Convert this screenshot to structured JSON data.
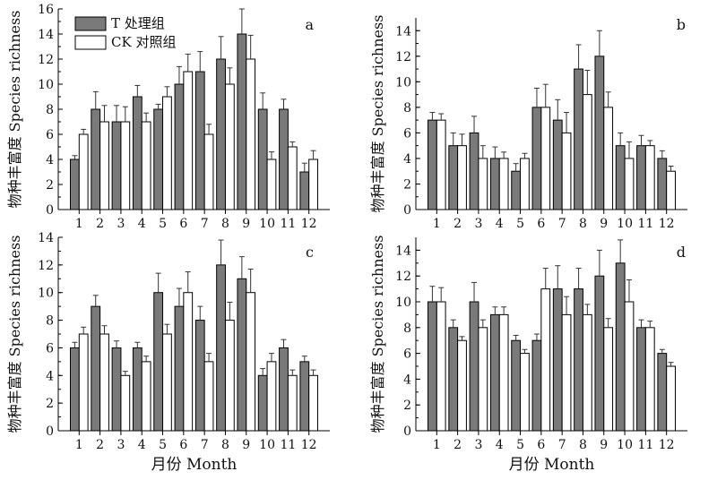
{
  "legend": {
    "items": [
      {
        "label": "T 处理组",
        "fill": "#7a7a7a"
      },
      {
        "label": "CK 对照组",
        "fill": "#ffffff"
      }
    ]
  },
  "xlabel_bottom": "月份 Month",
  "ylabel": "物种丰富度 Species richness",
  "chart_data": [
    {
      "type": "bar",
      "panel": "a",
      "categories": [
        "1",
        "2",
        "3",
        "4",
        "5",
        "6",
        "7",
        "8",
        "9",
        "10",
        "11",
        "12"
      ],
      "ylim": [
        0,
        16
      ],
      "yticks": [
        0,
        2,
        4,
        6,
        8,
        10,
        12,
        14,
        16
      ],
      "series": [
        {
          "name": "T 处理组",
          "values": [
            4,
            8,
            7,
            9,
            8,
            10,
            11,
            12,
            14,
            8,
            8,
            3
          ],
          "errors": [
            0.3,
            1.4,
            1.3,
            0.9,
            0.4,
            1.4,
            1.6,
            1.8,
            2.0,
            1.3,
            0.8,
            0.7
          ]
        },
        {
          "name": "CK 对照组",
          "values": [
            6,
            7,
            7,
            7,
            9,
            11,
            6,
            10,
            12,
            4,
            5,
            4
          ],
          "errors": [
            0.4,
            1.3,
            1.2,
            0.7,
            0.8,
            1.4,
            0.8,
            1.3,
            1.9,
            0.6,
            0.4,
            0.7
          ]
        }
      ]
    },
    {
      "type": "bar",
      "panel": "b",
      "categories": [
        "1",
        "2",
        "3",
        "4",
        "5",
        "6",
        "7",
        "8",
        "9",
        "10",
        "11",
        "12"
      ],
      "ylim": [
        0,
        15
      ],
      "yticks": [
        0,
        2,
        4,
        6,
        8,
        10,
        12,
        14
      ],
      "series": [
        {
          "name": "T 处理组",
          "values": [
            7,
            5,
            6,
            4,
            3,
            8,
            7,
            11,
            12,
            5,
            5,
            4
          ],
          "errors": [
            0.6,
            1.0,
            1.3,
            0.9,
            0.6,
            1.5,
            1.6,
            1.9,
            2.0,
            1.0,
            0.8,
            0.6
          ]
        },
        {
          "name": "CK 对照组",
          "values": [
            7,
            5,
            4,
            4,
            4,
            8,
            6,
            9,
            8,
            4,
            5,
            3
          ],
          "errors": [
            0.5,
            0.9,
            1.0,
            0.5,
            0.4,
            1.8,
            1.6,
            1.9,
            1.2,
            1.3,
            0.4,
            0.4
          ]
        }
      ]
    },
    {
      "type": "bar",
      "panel": "c",
      "categories": [
        "1",
        "2",
        "3",
        "4",
        "5",
        "6",
        "7",
        "8",
        "9",
        "10",
        "11",
        "12"
      ],
      "ylim": [
        0,
        14
      ],
      "yticks": [
        0,
        2,
        4,
        6,
        8,
        10,
        12,
        14
      ],
      "series": [
        {
          "name": "T 处理组",
          "values": [
            6,
            9,
            6,
            6,
            10,
            9,
            8,
            12,
            11,
            4,
            6,
            5
          ],
          "errors": [
            0.4,
            0.8,
            0.5,
            0.4,
            1.4,
            1.3,
            1.0,
            1.8,
            1.6,
            0.5,
            0.6,
            0.4
          ]
        },
        {
          "name": "CK 对照组",
          "values": [
            7,
            7,
            4,
            5,
            7,
            10,
            5,
            8,
            10,
            5,
            4,
            4
          ],
          "errors": [
            0.5,
            0.6,
            0.3,
            0.4,
            0.7,
            1.5,
            0.6,
            1.3,
            1.7,
            0.6,
            0.4,
            0.4
          ]
        }
      ]
    },
    {
      "type": "bar",
      "panel": "d",
      "categories": [
        "1",
        "2",
        "3",
        "4",
        "5",
        "6",
        "7",
        "8",
        "9",
        "10",
        "11",
        "12"
      ],
      "ylim": [
        0,
        15
      ],
      "yticks": [
        0,
        2,
        4,
        6,
        8,
        10,
        12,
        14
      ],
      "series": [
        {
          "name": "T 处理组",
          "values": [
            10,
            8,
            10,
            9,
            7,
            7,
            11,
            11,
            12,
            13,
            8,
            6
          ],
          "errors": [
            1.2,
            0.6,
            1.5,
            0.6,
            0.4,
            0.5,
            1.8,
            1.6,
            2.0,
            1.8,
            0.6,
            0.3
          ]
        },
        {
          "name": "CK 对照组",
          "values": [
            10,
            7,
            8,
            9,
            6,
            11,
            9,
            9,
            8,
            10,
            8,
            5
          ],
          "errors": [
            1.1,
            0.3,
            0.6,
            0.6,
            0.3,
            1.6,
            1.4,
            0.8,
            0.7,
            1.7,
            0.5,
            0.3
          ]
        }
      ]
    }
  ]
}
